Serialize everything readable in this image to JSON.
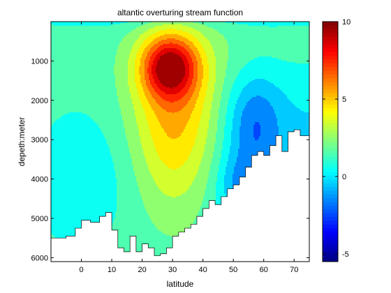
{
  "chart_data": {
    "type": "heatmap",
    "subtype": "filled-contour",
    "title": "altantic overturing stream function",
    "xlabel": "latitude",
    "ylabel": "depeth:meter",
    "xlim": [
      -10,
      75
    ],
    "ylim": [
      6100,
      0
    ],
    "x_ticks": [
      0,
      10,
      20,
      30,
      40,
      50,
      60,
      70
    ],
    "x_tick_labels": [
      "0",
      "10",
      "20",
      "30",
      "40",
      "50",
      "60",
      "70"
    ],
    "y_ticks": [
      1000,
      2000,
      3000,
      4000,
      5000,
      6000
    ],
    "y_tick_labels": [
      "1000",
      "2000",
      "3000",
      "4000",
      "5000",
      "6000"
    ],
    "colorbar": {
      "range": [
        -5.5,
        10
      ],
      "ticks": [
        -5,
        0,
        5,
        10
      ],
      "tick_labels": [
        "-5",
        "0",
        "5",
        "10"
      ],
      "colormap": "jet"
    },
    "contour_levels": [
      -5,
      -4,
      -3,
      -2,
      -1,
      0,
      1,
      2,
      3,
      4,
      5,
      6,
      7,
      8,
      9
    ],
    "features": {
      "maximum": {
        "value": 9.5,
        "latitude": 29,
        "depth": 1150
      },
      "main_cell_extent": {
        "latitude_range": [
          18,
          42
        ],
        "depth_range": [
          0,
          4800
        ]
      }
    },
    "bathymetry_depth_m": {
      "latitude": [
        -10,
        -5,
        -2,
        0,
        3,
        6,
        8,
        10,
        12,
        14,
        16,
        18,
        20,
        22,
        24,
        26,
        28,
        30,
        32,
        34,
        36,
        38,
        40,
        42,
        44,
        46,
        48,
        50,
        52,
        54,
        56,
        58,
        60,
        62,
        64,
        66,
        68,
        70,
        72,
        75
      ],
      "depth": [
        5500,
        5450,
        5250,
        5050,
        5100,
        4950,
        4850,
        5300,
        5750,
        5850,
        5450,
        5850,
        5650,
        5750,
        5950,
        5900,
        5750,
        5450,
        5350,
        5250,
        5150,
        4950,
        4750,
        4550,
        4650,
        4450,
        4250,
        4150,
        3950,
        3700,
        3400,
        3300,
        3400,
        3150,
        2900,
        3300,
        2800,
        2750,
        2900,
        3100
      ]
    }
  }
}
